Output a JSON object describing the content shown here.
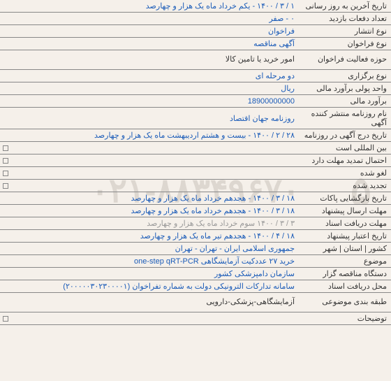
{
  "watermark_main": "۰۲۱-۸۸۳۴۹۶۷۰",
  "watermark_side": "۵",
  "rows": [
    {
      "label": "تاریخ آخرین به روز رسانی",
      "value": "۱ / ۳ / ۱۴۰۰ - یکم خرداد ماه یک هزار و چهارصد"
    },
    {
      "label": "تعداد دفعات بازدید",
      "value": "۰ - صفر"
    },
    {
      "label": "نوع انتشار",
      "value": "فراخوان"
    },
    {
      "label": "نوع فراخوان",
      "value": "آگهی مناقصه"
    },
    {
      "label": "حوزه فعالیت فراخوان",
      "value": "امور خرید یا تامین کالا",
      "tall": true,
      "black": true
    },
    {
      "label": "نوع برگزاری",
      "value": "دو مرحله ای"
    },
    {
      "label": "واحد پولی برآورد مالی",
      "value": "ریال"
    },
    {
      "label": "برآورد مالی",
      "value": "18900000000"
    },
    {
      "label": "نام روزنامه منتشر کننده آگهی",
      "value": "روزنامه جهان اقتصاد"
    },
    {
      "label": "تاریخ درج آگهی در روزنامه",
      "value": "۲۸ / ۲ / ۱۴۰۰ - بیست و هشتم اردیبهشت ماه یک هزار و چهارصد"
    },
    {
      "label": "بین المللی است",
      "value": "",
      "checkbox": true
    },
    {
      "label": "احتمال تمدید مهلت دارد",
      "value": "",
      "checkbox": true
    },
    {
      "label": "لغو شده",
      "value": "",
      "checkbox": true
    },
    {
      "label": "تجدید شده",
      "value": "",
      "checkbox": true
    },
    {
      "label": "تاریخ بازگشایی پاکات",
      "value": "۱۸ / ۳ / ۱۴۰۰ - هجدهم خرداد ماه یک هزار و چهارصد"
    },
    {
      "label": "مهلت ارسال پیشنهاد",
      "value": "۱۸ / ۳ / ۱۴۰۰ - هجدهم خرداد ماه یک هزار و چهارصد"
    },
    {
      "label": "مهلت دریافت اسناد",
      "value": "۳ / ۳ / ۱۴۰۰ سوم خرداد ماه یک هزار و چهارصد",
      "grey": true
    },
    {
      "label": "تاریخ اعتبار پیشنهاد",
      "value": "۱۸ / ۴ / ۱۴۰۰ - هجدهم تیر ماه یک هزار و چهارصد"
    },
    {
      "label": "کشور | استان | شهر",
      "value": "جمهوری اسلامی ایران - تهران - تهران"
    },
    {
      "label": "موضوع",
      "value": "خرید ۲۷ عددکیت آزمایشگاهی one-step qRT-PCR"
    },
    {
      "label": "دستگاه مناقصه گزار",
      "value": "سازمان دامپزشکی کشور"
    },
    {
      "label": "محل دریافت اسناد",
      "value": "سامانه تدارکات الترونیکی دولت به شماره تفراخوان (۲۰۰۰۰۰۳۰۲۳۰۰۰۰۱)"
    },
    {
      "label": "طبقه بندی موضوعی",
      "value": "آزمایشگاهی-پزشکی-دارویی",
      "tall": true,
      "black": true
    },
    {
      "label": "توضیحات",
      "value": "",
      "checkbox": true
    }
  ]
}
